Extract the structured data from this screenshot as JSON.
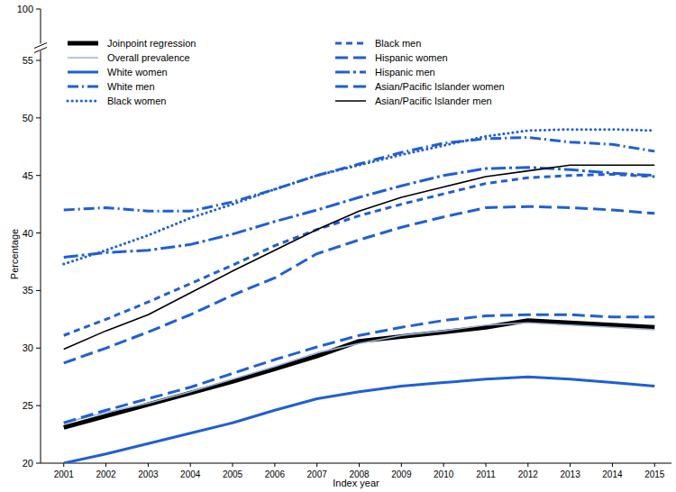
{
  "chart_data": {
    "type": "line",
    "xlabel": "Index year",
    "ylabel": "Percentage",
    "x": [
      2001,
      2002,
      2003,
      2004,
      2005,
      2006,
      2007,
      2008,
      2009,
      2010,
      2011,
      2012,
      2013,
      2014,
      2015
    ],
    "xlim": [
      2000.45,
      2015.4
    ],
    "xticks": [
      2001,
      2002,
      2003,
      2004,
      2005,
      2006,
      2007,
      2008,
      2009,
      2010,
      2011,
      2012,
      2013,
      2014,
      2015
    ],
    "ylim": [
      20,
      100
    ],
    "yticks": [
      20,
      25,
      30,
      35,
      40,
      45,
      50,
      55,
      100
    ],
    "grid": false,
    "legend": "top-left",
    "series": [
      {
        "name": "Joinpoint regression",
        "color": "#000000",
        "line_style": "thick",
        "values": [
          23.1,
          24.1,
          25.1,
          26.1,
          27.1,
          28.2,
          29.3,
          30.6,
          31.0,
          31.4,
          31.8,
          32.4,
          32.2,
          32.0,
          31.8
        ]
      },
      {
        "name": "Overall prevalence",
        "color": "#9bb3e0",
        "line_style": "thin",
        "values": [
          23.5,
          24.4,
          25.2,
          26.2,
          27.3,
          28.4,
          29.6,
          30.4,
          31.1,
          31.5,
          32.0,
          32.2,
          32.0,
          31.8,
          31.6
        ]
      },
      {
        "name": "White women",
        "color": "#1f5fd6",
        "line_style": "solid",
        "values": [
          20.0,
          20.8,
          21.7,
          22.6,
          23.5,
          24.6,
          25.6,
          26.2,
          26.7,
          27.0,
          27.3,
          27.5,
          27.3,
          27.0,
          26.7
        ]
      },
      {
        "name": "White men",
        "color": "#1f5fd6",
        "line_style": "dashdot",
        "values": [
          42.0,
          42.2,
          41.9,
          41.9,
          42.7,
          43.8,
          45.0,
          46.0,
          47.0,
          47.8,
          48.2,
          48.3,
          47.9,
          47.7,
          47.1
        ]
      },
      {
        "name": "Black women",
        "color": "#1f5fd6",
        "line_style": "dotted",
        "values": [
          37.3,
          38.5,
          39.8,
          41.3,
          42.5,
          43.8,
          45.0,
          45.9,
          46.8,
          47.6,
          48.4,
          48.9,
          49.0,
          49.0,
          48.9
        ]
      },
      {
        "name": "Black men",
        "color": "#1f5fd6",
        "line_style": "dashed",
        "values": [
          31.1,
          32.5,
          34.0,
          35.6,
          37.2,
          38.9,
          40.3,
          41.5,
          42.5,
          43.4,
          44.3,
          44.8,
          45.0,
          45.1,
          44.9
        ]
      },
      {
        "name": "Hispanic women",
        "color": "#1f5fd6",
        "line_style": "longdash",
        "values": [
          28.7,
          30.0,
          31.4,
          32.9,
          34.6,
          36.1,
          38.2,
          39.4,
          40.5,
          41.4,
          42.2,
          42.3,
          42.2,
          42.0,
          41.7
        ]
      },
      {
        "name": "Hispanic men",
        "color": "#1f5fd6",
        "line_style": "longdashdot",
        "values": [
          37.9,
          38.3,
          38.5,
          39.0,
          39.9,
          41.0,
          42.0,
          43.1,
          44.1,
          45.0,
          45.6,
          45.7,
          45.5,
          45.2,
          45.0
        ]
      },
      {
        "name": "Asian/Pacific Islander women",
        "color": "#1f5fd6",
        "line_style": "longdash",
        "values": [
          23.5,
          24.6,
          25.6,
          26.6,
          27.8,
          29.0,
          30.1,
          31.1,
          31.8,
          32.4,
          32.8,
          32.9,
          32.9,
          32.7,
          32.7
        ]
      },
      {
        "name": "Asian/Pacific Islander men",
        "color": "#000000",
        "line_style": "thin",
        "values": [
          29.9,
          31.5,
          32.9,
          34.8,
          36.7,
          38.5,
          40.3,
          41.9,
          43.1,
          44.0,
          44.9,
          45.4,
          45.9,
          45.9,
          45.9
        ]
      }
    ]
  }
}
